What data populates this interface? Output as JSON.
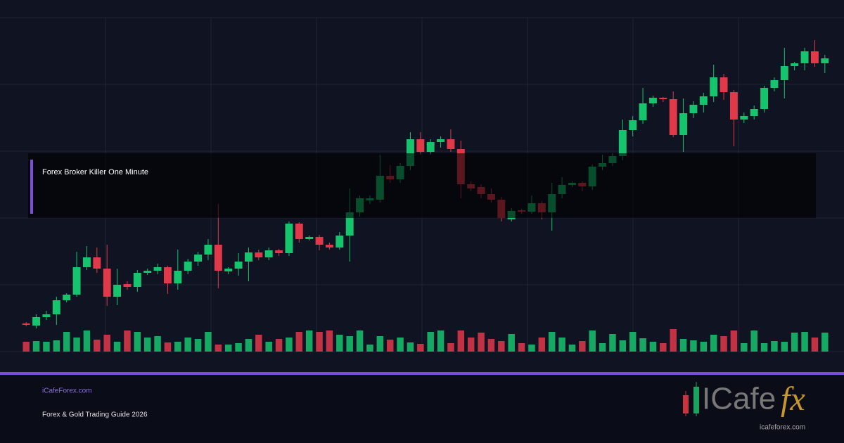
{
  "chart_data": {
    "type": "candlestick",
    "open": [
      40,
      37,
      49,
      53,
      73,
      81,
      120,
      134,
      118,
      78,
      96,
      92,
      112,
      115,
      120,
      97,
      115,
      128,
      138,
      152,
      114,
      118,
      128,
      141,
      134,
      144,
      140,
      182,
      160,
      163,
      152,
      148,
      165,
      198,
      215,
      216,
      250,
      245,
      264,
      302,
      284,
      298,
      302,
      288,
      238,
      234,
      224,
      216,
      188,
      201,
      199,
      211,
      198,
      224,
      237,
      240,
      235,
      263,
      268,
      278,
      315,
      329,
      353,
      361,
      359,
      308,
      339,
      351,
      363,
      390,
      369,
      330,
      335,
      345,
      375,
      386,
      406,
      410,
      427,
      410
    ],
    "high": [
      42,
      53,
      58,
      78,
      83,
      142,
      150,
      148,
      152,
      118,
      100,
      116,
      118,
      125,
      122,
      145,
      132,
      142,
      160,
      210,
      120,
      140,
      148,
      145,
      148,
      146,
      185,
      184,
      165,
      166,
      155,
      170,
      232,
      222,
      222,
      280,
      265,
      268,
      312,
      312,
      302,
      306,
      316,
      300,
      242,
      238,
      232,
      220,
      204,
      203,
      222,
      214,
      240,
      248,
      242,
      242,
      266,
      280,
      282,
      330,
      335,
      375,
      364,
      362,
      370,
      360,
      356,
      368,
      408,
      395,
      372,
      340,
      350,
      378,
      390,
      432,
      412,
      432,
      443,
      422
    ],
    "low": [
      36,
      33,
      45,
      38,
      70,
      78,
      116,
      112,
      65,
      66,
      88,
      85,
      109,
      110,
      82,
      88,
      110,
      122,
      130,
      90,
      110,
      108,
      100,
      130,
      130,
      136,
      136,
      155,
      158,
      144,
      145,
      145,
      128,
      192,
      210,
      212,
      240,
      240,
      258,
      280,
      280,
      290,
      284,
      218,
      228,
      218,
      212,
      185,
      185,
      196,
      196,
      188,
      172,
      218,
      234,
      228,
      230,
      258,
      264,
      272,
      306,
      324,
      348,
      355,
      305,
      284,
      332,
      340,
      355,
      358,
      292,
      325,
      330,
      340,
      370,
      360,
      400,
      400,
      405,
      396
    ],
    "close": [
      38,
      49,
      53,
      73,
      81,
      120,
      134,
      118,
      78,
      95,
      92,
      112,
      115,
      120,
      97,
      115,
      128,
      138,
      152,
      115,
      118,
      128,
      141,
      134,
      144,
      140,
      182,
      160,
      163,
      152,
      148,
      165,
      198,
      218,
      218,
      250,
      245,
      264,
      302,
      284,
      298,
      302,
      288,
      238,
      232,
      224,
      216,
      190,
      200,
      199,
      211,
      198,
      224,
      237,
      240,
      235,
      263,
      268,
      278,
      315,
      329,
      353,
      361,
      359,
      308,
      339,
      351,
      363,
      390,
      369,
      330,
      335,
      345,
      375,
      386,
      406,
      410,
      427,
      410,
      417
    ],
    "volume": [
      14,
      15,
      14,
      16,
      28,
      20,
      30,
      17,
      24,
      14,
      30,
      28,
      20,
      22,
      13,
      14,
      20,
      18,
      28,
      10,
      10,
      12,
      18,
      24,
      14,
      18,
      20,
      28,
      30,
      28,
      30,
      24,
      22,
      30,
      10,
      22,
      17,
      20,
      13,
      11,
      28,
      30,
      12,
      30,
      20,
      27,
      18,
      15,
      25,
      12,
      10,
      20,
      28,
      20,
      10,
      15,
      30,
      12,
      25,
      16,
      28,
      19,
      14,
      12,
      32,
      18,
      16,
      14,
      24,
      22,
      30,
      12,
      30,
      12,
      15,
      14,
      27,
      28,
      20,
      27
    ],
    "up_color": "#17c46e",
    "down_color": "#e03a4a",
    "ylim": [
      0,
      475
    ],
    "yticks": [
      0,
      95,
      190,
      285,
      380,
      475
    ],
    "grid": true
  },
  "banner": {
    "title": "Forex Broker Killer One Minute"
  },
  "footer": {
    "site": "iCafeForex.com",
    "subtitle": "Forex & Gold Trading Guide 2026"
  },
  "logo": {
    "name": "ICafe",
    "accent": "fx",
    "url": "icafeforex.com"
  }
}
